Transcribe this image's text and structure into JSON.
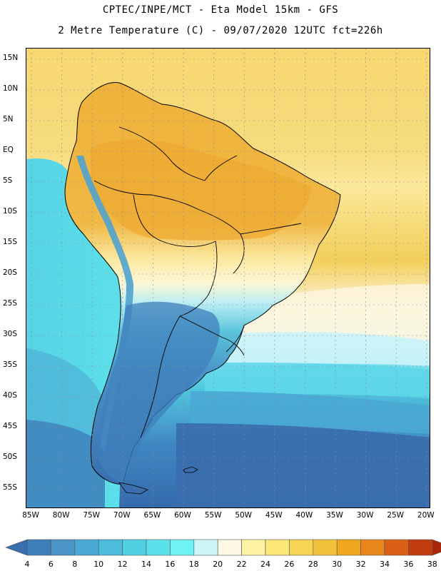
{
  "title": {
    "line1": "CPTEC/INPE/MCT -  Eta Model 15km - GFS",
    "line2": "2 Metre Temperature (C) - 09/07/2020 12UTC fct=226h"
  },
  "map": {
    "lat_labels": [
      "15N",
      "10N",
      "5N",
      "EQ",
      "5S",
      "10S",
      "15S",
      "20S",
      "25S",
      "30S",
      "35S",
      "40S",
      "45S",
      "50S",
      "55S"
    ],
    "lon_labels": [
      "85W",
      "80W",
      "75W",
      "70W",
      "65W",
      "60W",
      "55W",
      "50W",
      "45W",
      "40W",
      "35W",
      "30W",
      "25W",
      "20W"
    ]
  },
  "colorbar": {
    "levels": [
      "4",
      "6",
      "8",
      "10",
      "12",
      "14",
      "16",
      "18",
      "20",
      "22",
      "24",
      "26",
      "28",
      "30",
      "32",
      "34",
      "36",
      "38"
    ],
    "colors": [
      "#3a6eae",
      "#3d7fba",
      "#4a94c8",
      "#49a9d4",
      "#4dbcdc",
      "#50cfe2",
      "#5ce0ea",
      "#6ef2f4",
      "#cdf5f8",
      "#fdf8e4",
      "#fdf3a2",
      "#fbe678",
      "#f6d455",
      "#f2c23c",
      "#efa81e",
      "#e8861c",
      "#dc5f16",
      "#c33b10",
      "#a8260a"
    ]
  }
}
